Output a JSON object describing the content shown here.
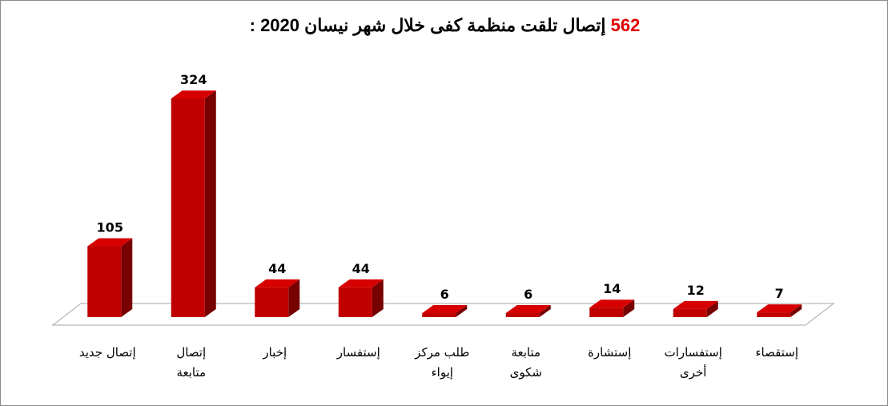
{
  "chart_data": {
    "type": "bar3d",
    "title_highlight": "562",
    "title": "إتصال تلقت منظمة كفى خلال شهر نيسان 2020 :",
    "categories": [
      [
        "إتصال جديد"
      ],
      [
        "إتصال",
        "متابعة"
      ],
      [
        "إخبار"
      ],
      [
        "إستفسار"
      ],
      [
        "طلب مركز",
        "إيواء"
      ],
      [
        "متابعة",
        "شكوى"
      ],
      [
        "إستشارة"
      ],
      [
        "إستفسارات",
        "أخرى"
      ],
      [
        "إستقصاء"
      ]
    ],
    "values": [
      105,
      324,
      44,
      44,
      6,
      6,
      14,
      12,
      7
    ],
    "color": "#c00000"
  }
}
